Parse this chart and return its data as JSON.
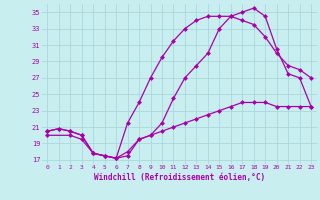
{
  "xlabel": "Windchill (Refroidissement éolien,°C)",
  "bg_color": "#c8eef0",
  "grid_color": "#a8d8dc",
  "line_color": "#aa00aa",
  "xlim": [
    -0.5,
    23.5
  ],
  "ylim": [
    16.5,
    36.0
  ],
  "xticks": [
    0,
    1,
    2,
    3,
    4,
    5,
    6,
    7,
    8,
    9,
    10,
    11,
    12,
    13,
    14,
    15,
    16,
    17,
    18,
    19,
    20,
    21,
    22,
    23
  ],
  "yticks": [
    17,
    19,
    21,
    23,
    25,
    27,
    29,
    31,
    33,
    35
  ],
  "line1_x": [
    0,
    1,
    2,
    3,
    4,
    5,
    6,
    7,
    8,
    9,
    10,
    11,
    12,
    13,
    14,
    15,
    16,
    17,
    18,
    19,
    20,
    21,
    22,
    23
  ],
  "line1_y": [
    20.5,
    20.8,
    20.5,
    20.0,
    17.8,
    17.5,
    17.2,
    17.5,
    19.5,
    20.0,
    21.5,
    24.5,
    27.0,
    28.5,
    30.0,
    33.0,
    34.5,
    35.0,
    35.5,
    34.5,
    30.5,
    27.5,
    27.0,
    23.5
  ],
  "line2_x": [
    0,
    1,
    2,
    3,
    4,
    5,
    6,
    7,
    8,
    9,
    10,
    11,
    12,
    13,
    14,
    15,
    16,
    17,
    18,
    19,
    20,
    21,
    22,
    23
  ],
  "line2_y": [
    20.5,
    20.8,
    20.5,
    20.0,
    17.8,
    17.5,
    17.2,
    21.5,
    24.0,
    27.0,
    29.5,
    31.5,
    33.0,
    34.0,
    34.5,
    34.5,
    34.5,
    34.0,
    33.5,
    32.0,
    30.0,
    28.5,
    28.0,
    27.0
  ],
  "line3_x": [
    0,
    2,
    3,
    4,
    5,
    6,
    7,
    8,
    9,
    10,
    11,
    12,
    13,
    14,
    15,
    16,
    17,
    18,
    19,
    20,
    21,
    22,
    23
  ],
  "line3_y": [
    20.0,
    20.0,
    19.5,
    17.8,
    17.5,
    17.2,
    18.0,
    19.5,
    20.0,
    20.5,
    21.0,
    21.5,
    22.0,
    22.5,
    23.0,
    23.5,
    24.0,
    24.0,
    24.0,
    23.5,
    23.5,
    23.5,
    23.5
  ]
}
